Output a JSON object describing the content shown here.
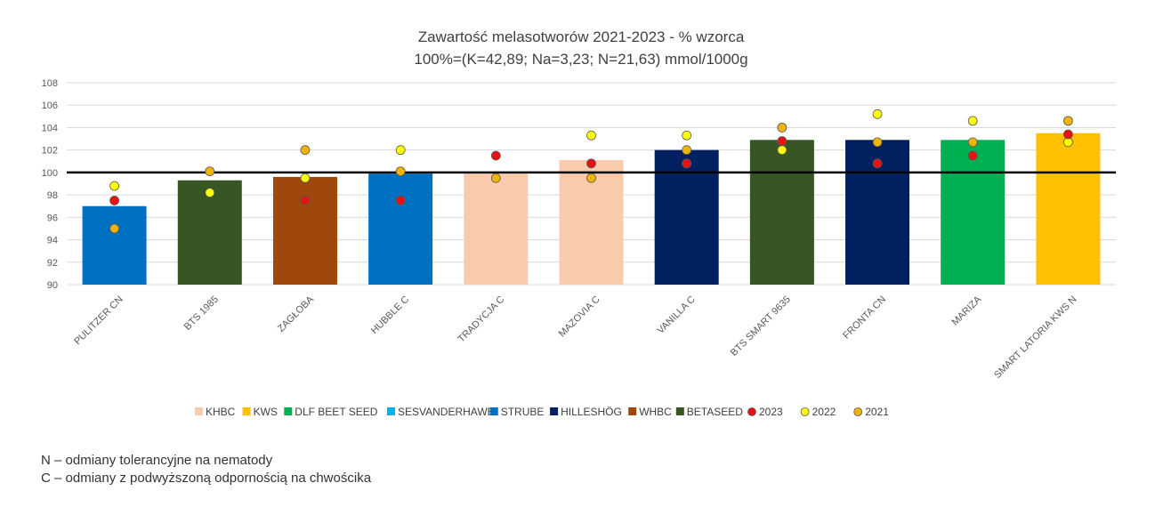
{
  "chart_data": {
    "type": "bar",
    "title": "Zawartość melasotworów 2021-2023 - % wzorca",
    "subtitle": "100%=(K=42,89; Na=3,23; N=21,63) mmol/1000g",
    "ylim": [
      90,
      108
    ],
    "yticks": [
      90,
      92,
      94,
      96,
      98,
      100,
      102,
      104,
      106,
      108
    ],
    "reference_line": 100,
    "grid": true,
    "legend_position": "bottom",
    "categories": [
      "PULITZER CN",
      "BTS 1985",
      "ZAGŁOBA",
      "HUBBLE C",
      "TRADYCJA C",
      "MAZOVIA C",
      "VANILLA C",
      "BTS SMART 9635",
      "FRONTA CN",
      "MARIZA",
      "SMART LATORIA KWS N"
    ],
    "bar_group": [
      "STRUBE",
      "BETASEED",
      "WHBC",
      "STRUBE",
      "KHBC",
      "KHBC",
      "HILLESHÖG",
      "BETASEED",
      "HILLESHÖG",
      "DLF BEET SEED",
      "KWS"
    ],
    "values": [
      97.0,
      99.3,
      99.6,
      99.9,
      99.9,
      101.1,
      102.0,
      102.9,
      102.9,
      102.9,
      103.5
    ],
    "bar_legend": [
      {
        "name": "KHBC",
        "color": "#F8CBAD"
      },
      {
        "name": "KWS",
        "color": "#FFC000"
      },
      {
        "name": "DLF BEET SEED",
        "color": "#00B050"
      },
      {
        "name": "SESVANDERHAWE",
        "color": "#00B0F0"
      },
      {
        "name": "STRUBE",
        "color": "#0070C0"
      },
      {
        "name": "HILLESHÖG",
        "color": "#002060"
      },
      {
        "name": "WHBC",
        "color": "#9E480E"
      },
      {
        "name": "BETASEED",
        "color": "#375623"
      }
    ],
    "series": [
      {
        "name": "2023",
        "color": "#E81010",
        "values": [
          97.5,
          null,
          97.5,
          97.5,
          101.5,
          100.8,
          100.8,
          102.8,
          100.8,
          101.5,
          103.4
        ]
      },
      {
        "name": "2022",
        "color": "#FFFF00",
        "values": [
          98.8,
          98.2,
          99.5,
          null,
          null,
          103.3,
          103.3,
          102.0,
          105.2,
          104.6,
          102.7
        ]
      },
      {
        "name": "2021",
        "color": "#F0B400",
        "values": [
          95.0,
          100.1,
          102.0,
          100.1,
          99.5,
          99.5,
          102.0,
          104.0,
          102.7,
          102.7,
          104.6
        ]
      }
    ]
  },
  "series_2022_hubble": 102.0,
  "footnotes": [
    "N – odmiany tolerancyjne na nematody",
    "C – odmiany z podwyższoną odpornością na chwościka"
  ]
}
